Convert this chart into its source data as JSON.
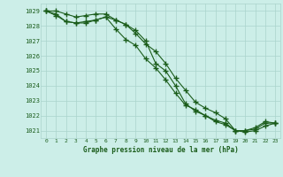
{
  "x": [
    0,
    1,
    2,
    3,
    4,
    5,
    6,
    7,
    8,
    9,
    10,
    11,
    12,
    13,
    14,
    15,
    16,
    17,
    18,
    19,
    20,
    21,
    22,
    23
  ],
  "line1": [
    1029.0,
    1029.0,
    1028.8,
    1028.6,
    1028.7,
    1028.8,
    1028.8,
    1028.4,
    1028.1,
    1027.5,
    1026.8,
    1026.3,
    1025.5,
    1024.5,
    1023.7,
    1022.9,
    1022.5,
    1022.2,
    1021.8,
    1021.0,
    1021.0,
    1021.1,
    1021.5,
    1021.5
  ],
  "line2": [
    1029.0,
    1028.7,
    1028.3,
    1028.2,
    1028.2,
    1028.4,
    1028.6,
    1028.4,
    1028.1,
    1027.7,
    1027.0,
    1025.5,
    1025.0,
    1024.0,
    1022.8,
    1022.3,
    1022.0,
    1021.7,
    1021.5,
    1021.0,
    1021.0,
    1021.2,
    1021.6,
    1021.5
  ],
  "line3": [
    1029.0,
    1028.8,
    1028.3,
    1028.2,
    1028.3,
    1028.4,
    1028.6,
    1027.8,
    1027.1,
    1026.7,
    1025.8,
    1025.2,
    1024.4,
    1023.5,
    1022.7,
    1022.4,
    1022.0,
    1021.6,
    1021.4,
    1021.0,
    1020.9,
    1021.0,
    1021.3,
    1021.5
  ],
  "line_color": "#1a5c1a",
  "bg_color": "#cceee8",
  "grid_color": "#aad4cc",
  "text_color": "#1a5c1a",
  "xlabel": "Graphe pression niveau de la mer (hPa)",
  "ylim_min": 1020.5,
  "ylim_max": 1029.5,
  "xlim_min": -0.5,
  "xlim_max": 23.5,
  "yticks": [
    1021,
    1022,
    1023,
    1024,
    1025,
    1026,
    1027,
    1028,
    1029
  ],
  "xticks": [
    0,
    1,
    2,
    3,
    4,
    5,
    6,
    7,
    8,
    9,
    10,
    11,
    12,
    13,
    14,
    15,
    16,
    17,
    18,
    19,
    20,
    21,
    22,
    23
  ],
  "figwidth": 3.2,
  "figheight": 2.0,
  "dpi": 100
}
